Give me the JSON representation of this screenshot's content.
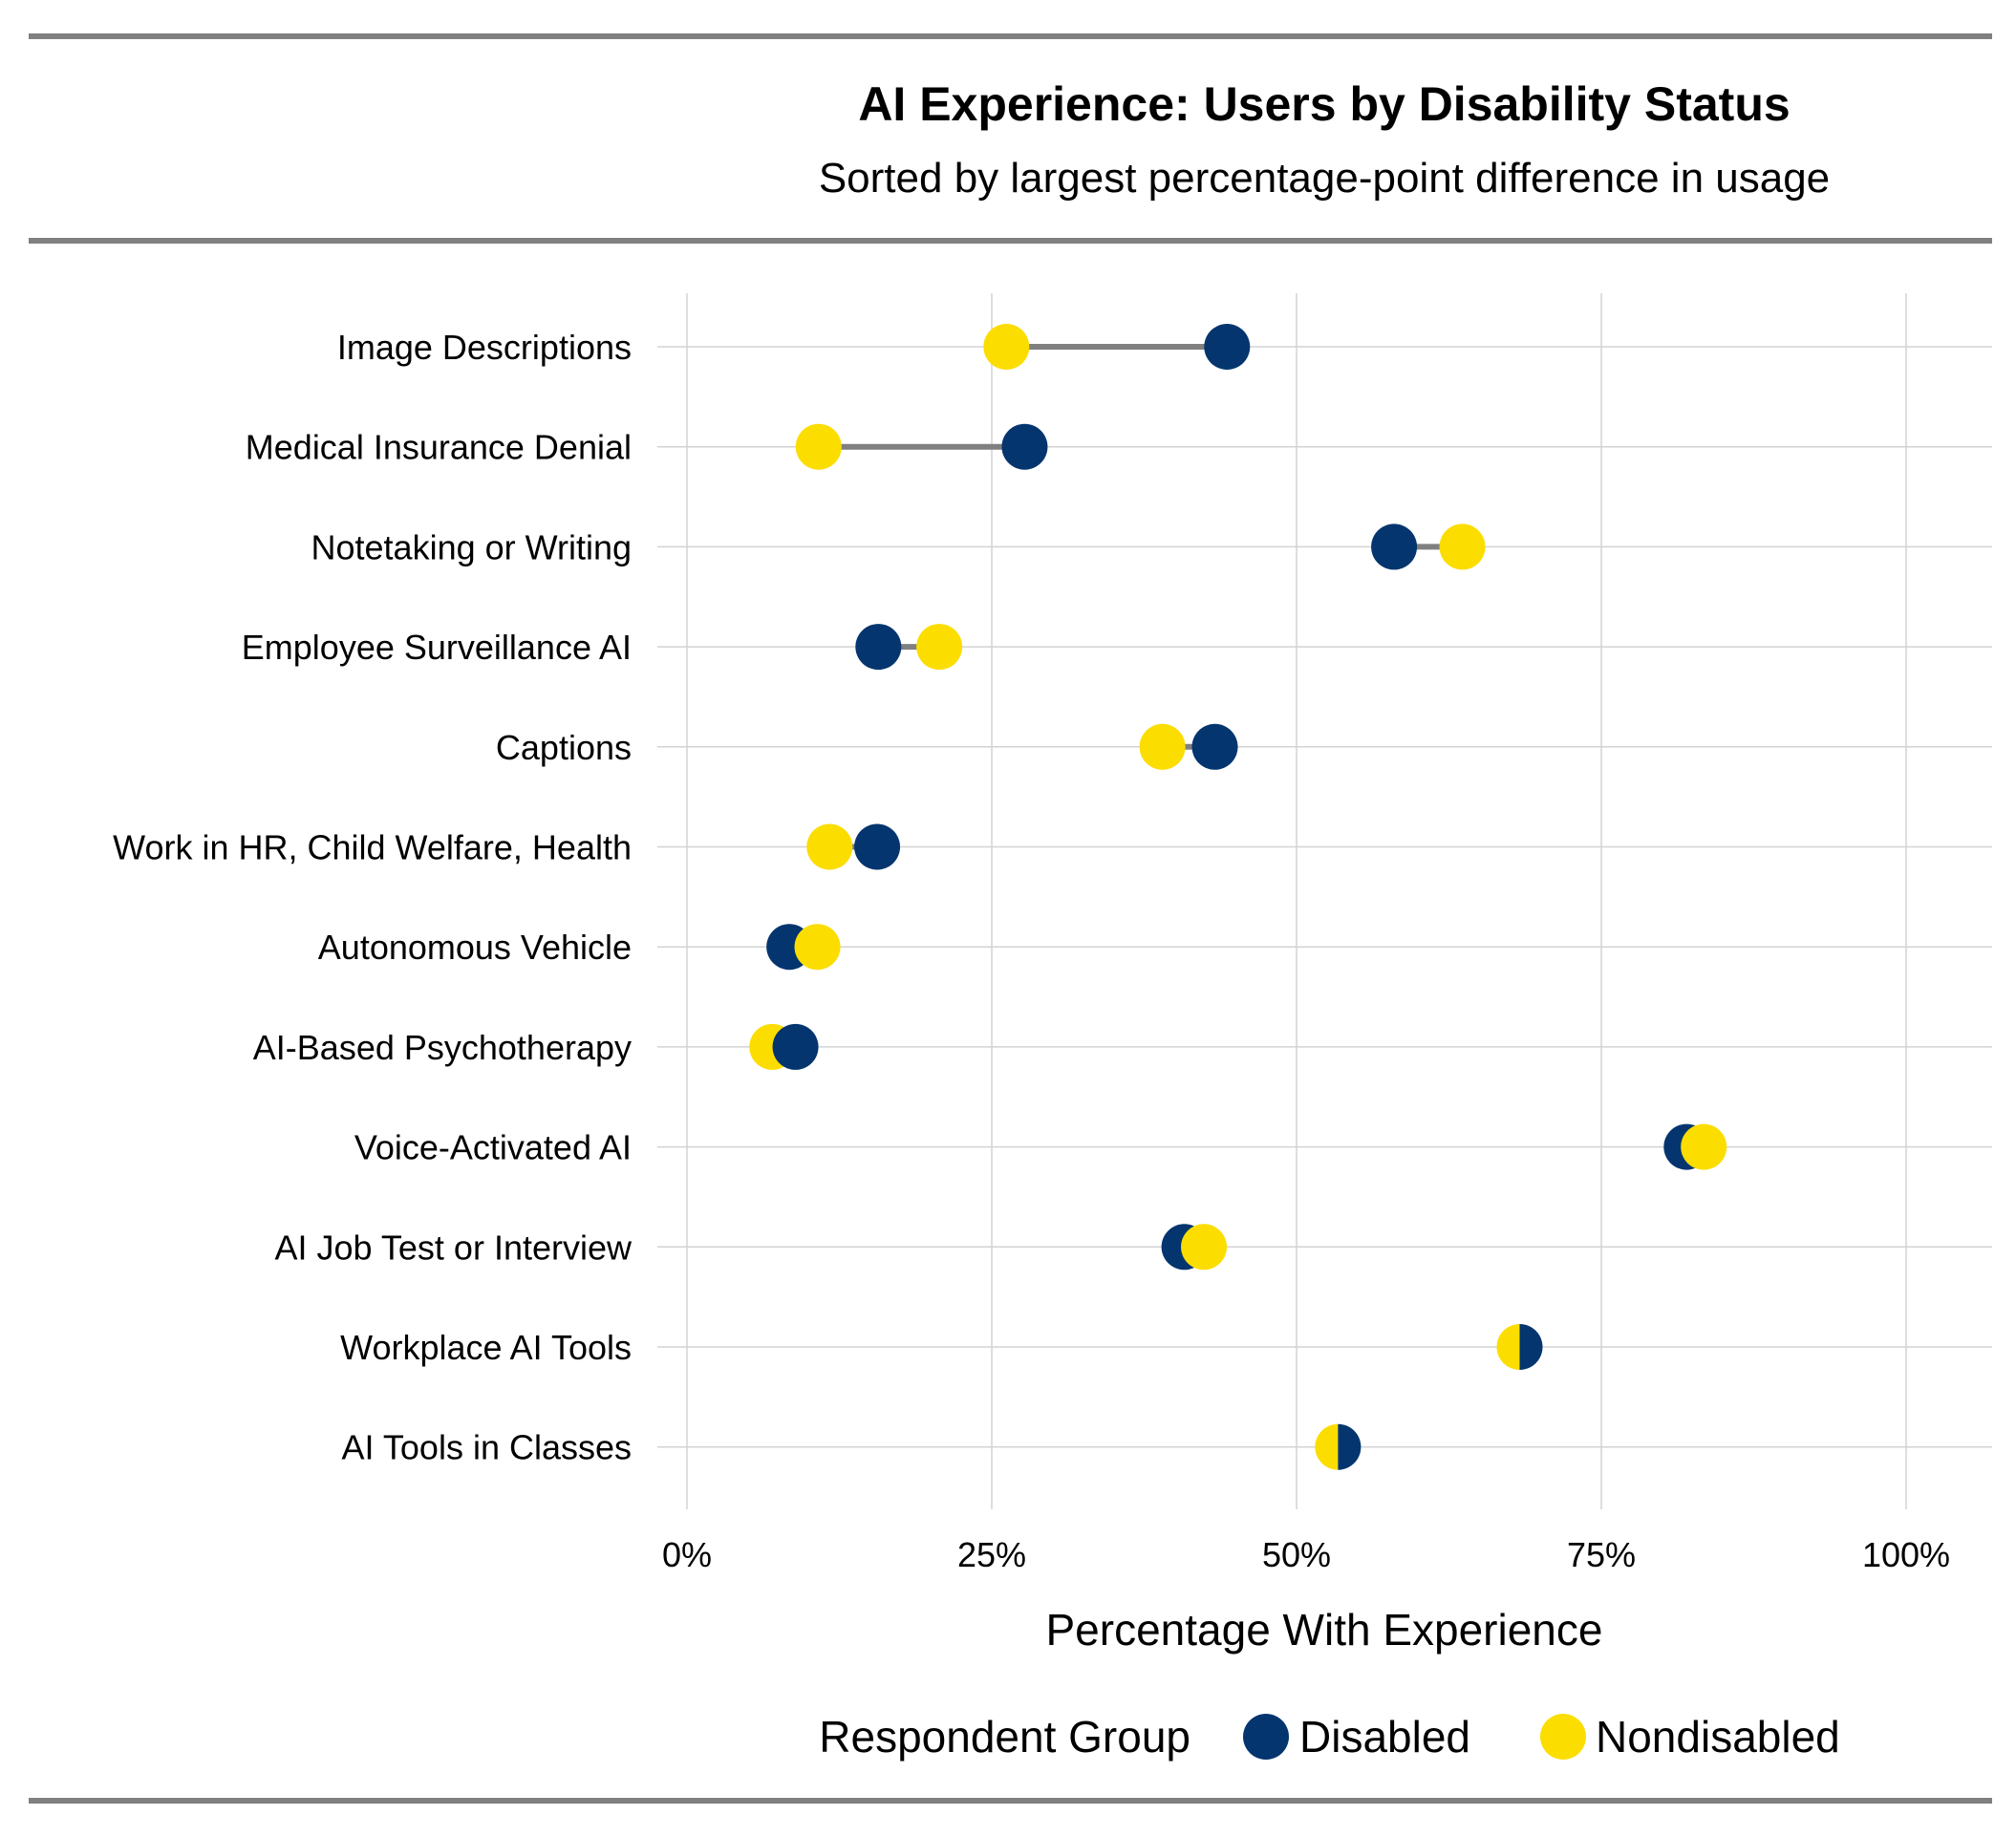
{
  "chart_data": {
    "type": "dumbbell",
    "title": "AI Experience: Users by Disability Status",
    "subtitle": "Sorted by largest percentage-point difference in usage",
    "xlabel": "Percentage With Experience",
    "ylabel": "",
    "xlim": [
      0,
      100
    ],
    "x_ticks": [
      0,
      25,
      50,
      75,
      100
    ],
    "x_tick_labels": [
      "0%",
      "25%",
      "50%",
      "75%",
      "100%"
    ],
    "grid": true,
    "legend": {
      "title": "Respondent Group",
      "placement": "bottom",
      "entries": [
        "Disabled",
        "Nondisabled"
      ]
    },
    "colors": {
      "Disabled": "#04356f",
      "Nondisabled": "#fcdd00",
      "connector": "#808080",
      "rule": "#808080",
      "grid": "#d3d3d3"
    },
    "categories": [
      "Image  Descriptions",
      "Medical Insurance Denial",
      "Notetaking or Writing",
      "Employee Surveillance AI",
      "Captions",
      "Work in HR, Child Welfare, Health",
      "Autonomous Vehicle",
      "AI-Based Psychotherapy",
      "Voice-Activated AI",
      "AI Job Test or Interview",
      "Workplace AI Tools",
      "AI Tools in Classes"
    ],
    "series": [
      {
        "name": "Disabled",
        "values": [
          44.3,
          27.7,
          58.0,
          15.7,
          43.3,
          15.6,
          8.4,
          8.9,
          82.0,
          40.8,
          68.3,
          53.4
        ]
      },
      {
        "name": "Nondisabled",
        "values": [
          26.2,
          10.8,
          63.6,
          20.7,
          39.0,
          11.7,
          10.7,
          7.0,
          83.4,
          42.4,
          68.3,
          53.4
        ]
      }
    ]
  }
}
